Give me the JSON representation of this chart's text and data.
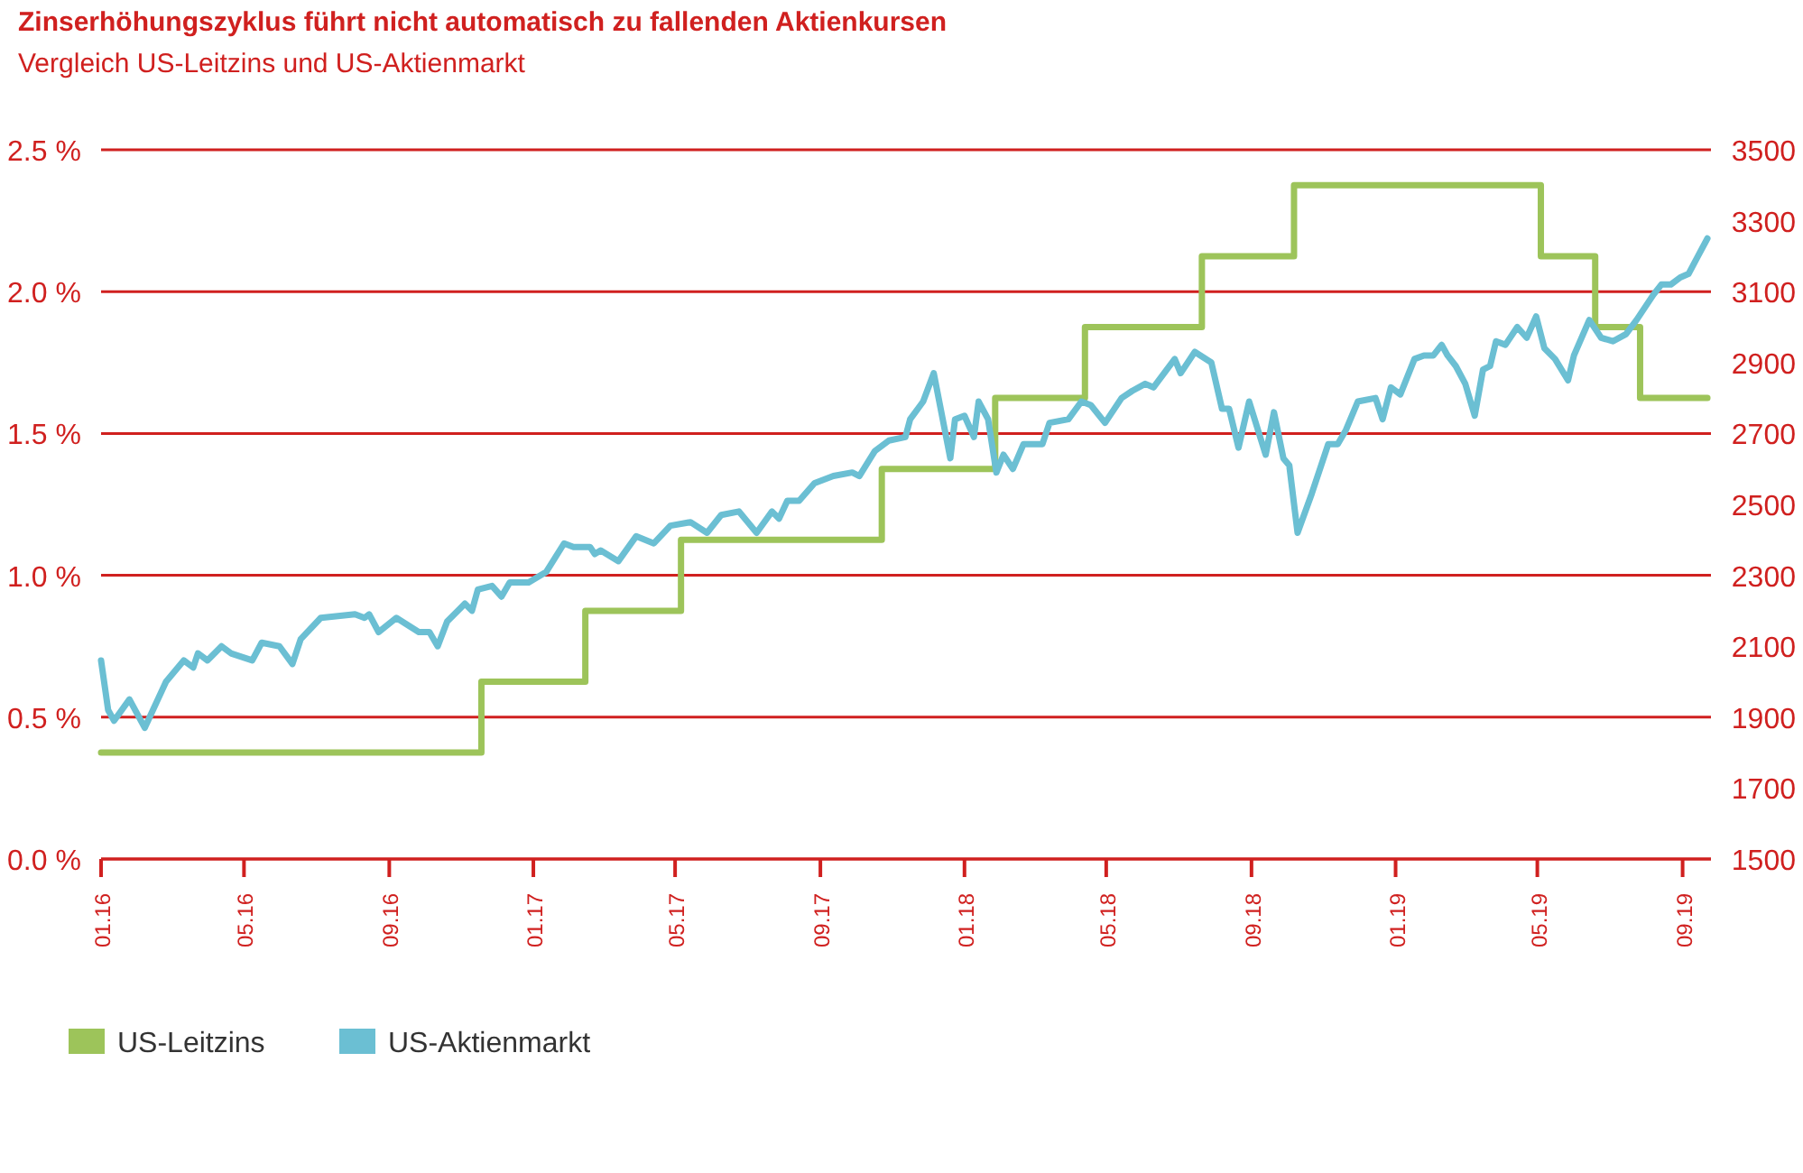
{
  "chart_data": {
    "type": "line",
    "title": "Zinserhöhungszyklus führt nicht automatisch zu fallenden Aktienkursen",
    "subtitle": "Vergleich US-Leitzins und US-Aktienmarkt",
    "xlim": [
      "2016-01-01",
      "2019-09-25"
    ],
    "xticks": [
      {
        "value": "2016-01-01",
        "label": "01.16"
      },
      {
        "value": "2016-05-01",
        "label": "05.16"
      },
      {
        "value": "2016-09-01",
        "label": "09.16"
      },
      {
        "value": "2017-01-01",
        "label": "01.17"
      },
      {
        "value": "2017-05-01",
        "label": "05.17"
      },
      {
        "value": "2017-09-01",
        "label": "09.17"
      },
      {
        "value": "2018-01-01",
        "label": "01.18"
      },
      {
        "value": "2018-05-01",
        "label": "05.18"
      },
      {
        "value": "2018-09-01",
        "label": "09.18"
      },
      {
        "value": "2019-01-01",
        "label": "01.19"
      },
      {
        "value": "2019-05-01",
        "label": "05.19"
      },
      {
        "value": "2019-09-01",
        "label": "09.19"
      }
    ],
    "ylim": [
      0,
      2.5
    ],
    "yticks": [
      {
        "value": 0,
        "label": "0.0 %"
      },
      {
        "value": 0.5,
        "label": "0.5 %"
      },
      {
        "value": 1,
        "label": "1.0 %"
      },
      {
        "value": 1.5,
        "label": "1.5 %"
      },
      {
        "value": 2,
        "label": "2.0 %"
      },
      {
        "value": 2.5,
        "label": "2.5 %"
      }
    ],
    "y2lim": [
      1500,
      3500
    ],
    "y2ticks": [
      1500,
      1700,
      1900,
      2100,
      2300,
      2500,
      2700,
      2900,
      3100,
      3300,
      3500
    ],
    "grid": "y",
    "legend": "bottom",
    "series": [
      {
        "name": "US-Leitzins",
        "type": "step",
        "color": "#9dc45a",
        "x": [
          "2016-01-01",
          "2016-11-18",
          "2017-02-14",
          "2017-05-06",
          "2017-10-23",
          "2018-01-27",
          "2018-04-13",
          "2018-07-21",
          "2018-10-07",
          "2019-05-04",
          "2019-06-19",
          "2019-07-27",
          "2019-09-22"
        ],
        "values": [
          0.375,
          0.625,
          0.875,
          1.125,
          1.375,
          1.625,
          1.875,
          2.125,
          2.375,
          2.125,
          1.875,
          1.625,
          1.625
        ]
      },
      {
        "name": "US-Aktienmarkt",
        "type": "line",
        "axis": "y2",
        "color": "#6bbfd3",
        "x": [
          "2016-01-01",
          "2016-01-07",
          "2016-01-12",
          "2016-01-25",
          "2016-02-07",
          "2016-02-25",
          "2016-03-11",
          "2016-03-19",
          "2016-03-23",
          "2016-03-31",
          "2016-04-12",
          "2016-04-20",
          "2016-05-08",
          "2016-05-16",
          "2016-05-31",
          "2016-06-11",
          "2016-06-18",
          "2016-07-05",
          "2016-08-03",
          "2016-08-11",
          "2016-08-15",
          "2016-08-23",
          "2016-09-07",
          "2016-09-26",
          "2016-10-05",
          "2016-10-12",
          "2016-10-20",
          "2016-11-04",
          "2016-11-10",
          "2016-11-15",
          "2016-11-27",
          "2016-12-05",
          "2016-12-12",
          "2016-12-28",
          "2017-01-12",
          "2017-01-27",
          "2017-02-04",
          "2017-02-18",
          "2017-02-22",
          "2017-02-27",
          "2017-03-14",
          "2017-03-29",
          "2017-04-13",
          "2017-04-27",
          "2017-05-14",
          "2017-05-28",
          "2017-06-09",
          "2017-06-24",
          "2017-07-09",
          "2017-07-22",
          "2017-07-28",
          "2017-08-04",
          "2017-08-14",
          "2017-08-27",
          "2017-09-12",
          "2017-09-28",
          "2017-10-04",
          "2017-10-17",
          "2017-10-29",
          "2017-11-12",
          "2017-11-16",
          "2017-11-27",
          "2017-12-06",
          "2017-12-20",
          "2017-12-24",
          "2018-01-01",
          "2018-01-09",
          "2018-01-13",
          "2018-01-21",
          "2018-01-28",
          "2018-02-03",
          "2018-02-11",
          "2018-02-20",
          "2018-03-08",
          "2018-03-14",
          "2018-03-30",
          "2018-04-10",
          "2018-04-18",
          "2018-04-30",
          "2018-05-14",
          "2018-05-23",
          "2018-06-03",
          "2018-06-10",
          "2018-06-28",
          "2018-07-03",
          "2018-07-15",
          "2018-07-29",
          "2018-08-07",
          "2018-08-13",
          "2018-08-21",
          "2018-08-30",
          "2018-09-13",
          "2018-09-20",
          "2018-09-28",
          "2018-10-03",
          "2018-10-10",
          "2018-10-22",
          "2018-11-05",
          "2018-11-13",
          "2018-11-20",
          "2018-11-30",
          "2018-12-15",
          "2018-12-21",
          "2018-12-28",
          "2019-01-05",
          "2019-01-17",
          "2019-01-25",
          "2019-02-02",
          "2019-02-09",
          "2019-02-14",
          "2019-02-21",
          "2019-03-01",
          "2019-03-09",
          "2019-03-16",
          "2019-03-22",
          "2019-03-27",
          "2019-04-04",
          "2019-04-14",
          "2019-04-22",
          "2019-04-30",
          "2019-05-07",
          "2019-05-16",
          "2019-05-27",
          "2019-06-01",
          "2019-06-14",
          "2019-06-24",
          "2019-07-04",
          "2019-07-15",
          "2019-07-24",
          "2019-08-07",
          "2019-08-14",
          "2019-08-22",
          "2019-08-30",
          "2019-09-06",
          "2019-09-14",
          "2019-09-22"
        ],
        "values": [
          2060,
          1920,
          1890,
          1950,
          1870,
          2000,
          2060,
          2040,
          2080,
          2060,
          2100,
          2080,
          2060,
          2110,
          2100,
          2050,
          2120,
          2180,
          2190,
          2180,
          2190,
          2140,
          2180,
          2140,
          2140,
          2100,
          2170,
          2220,
          2200,
          2260,
          2270,
          2240,
          2280,
          2280,
          2310,
          2390,
          2380,
          2380,
          2360,
          2370,
          2340,
          2410,
          2390,
          2440,
          2450,
          2420,
          2470,
          2480,
          2420,
          2480,
          2460,
          2510,
          2510,
          2560,
          2580,
          2590,
          2580,
          2650,
          2680,
          2690,
          2740,
          2790,
          2870,
          2630,
          2740,
          2750,
          2690,
          2790,
          2740,
          2590,
          2640,
          2600,
          2670,
          2670,
          2730,
          2740,
          2790,
          2780,
          2730,
          2800,
          2820,
          2840,
          2830,
          2910,
          2870,
          2930,
          2900,
          2770,
          2770,
          2660,
          2790,
          2640,
          2760,
          2630,
          2610,
          2420,
          2530,
          2670,
          2670,
          2710,
          2790,
          2800,
          2740,
          2830,
          2810,
          2910,
          2920,
          2920,
          2950,
          2920,
          2890,
          2840,
          2750,
          2880,
          2890,
          2960,
          2950,
          3000,
          2970,
          3030,
          2940,
          2910,
          2850,
          2920,
          3020,
          2970,
          2960,
          2980,
          3020,
          3090,
          3120,
          3120,
          3140,
          3150,
          3200,
          3250
        ]
      }
    ]
  }
}
